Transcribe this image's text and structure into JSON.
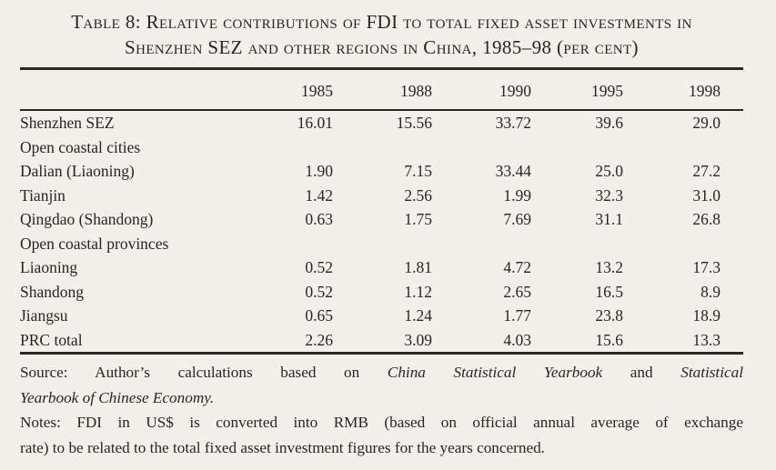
{
  "title": {
    "line1": "Table 8: Relative contributions of FDI to total fixed asset investments in",
    "line2": "Shenzhen SEZ and other regions in China, 1985–98 (per cent)"
  },
  "table": {
    "columns": [
      "1985",
      "1988",
      "1990",
      "1995",
      "1998"
    ],
    "rows": [
      {
        "label": "Shenzhen SEZ",
        "values": [
          "16.01",
          "15.56",
          "33.72",
          "39.6",
          "29.0"
        ]
      },
      {
        "label": "Open coastal cities",
        "values": [
          "",
          "",
          "",
          "",
          ""
        ]
      },
      {
        "label": "Dalian (Liaoning)",
        "values": [
          "1.90",
          "7.15",
          "33.44",
          "25.0",
          "27.2"
        ]
      },
      {
        "label": "Tianjin",
        "values": [
          "1.42",
          "2.56",
          "1.99",
          "32.3",
          "31.0"
        ]
      },
      {
        "label": "Qingdao (Shandong)",
        "values": [
          "0.63",
          "1.75",
          "7.69",
          "31.1",
          "26.8"
        ]
      },
      {
        "label": "Open coastal provinces",
        "values": [
          "",
          "",
          "",
          "",
          ""
        ]
      },
      {
        "label": "Liaoning",
        "values": [
          "0.52",
          "1.81",
          "4.72",
          "13.2",
          "17.3"
        ]
      },
      {
        "label": "Shandong",
        "values": [
          "0.52",
          "1.12",
          "2.65",
          "16.5",
          "8.9"
        ]
      },
      {
        "label": "Jiangsu",
        "values": [
          "0.65",
          "1.24",
          "1.77",
          "23.8",
          "18.9"
        ]
      },
      {
        "label": "PRC total",
        "values": [
          "2.26",
          "3.09",
          "4.03",
          "15.6",
          "13.3"
        ]
      }
    ]
  },
  "source": {
    "lines": [
      {
        "segments": [
          {
            "text": "Source: Author’s calculations based on ",
            "italic": false
          },
          {
            "text": "China Statistical Yearbook",
            "italic": true
          },
          {
            "text": " and ",
            "italic": false
          },
          {
            "text": "Statistical",
            "italic": true
          }
        ]
      },
      {
        "segments": [
          {
            "text": "Yearbook of Chinese Economy.",
            "italic": true
          }
        ]
      }
    ]
  },
  "notes": {
    "lines": [
      "Notes: FDI in US$ is converted into RMB (based on official annual average of exchange",
      "rate) to be related to the total fixed asset investment figures for the years concerned."
    ]
  },
  "colors": {
    "paper": "#f1f0eb",
    "ink": "#2a2520"
  },
  "chart_data": {
    "type": "table",
    "title": "Table 8: Relative contributions of FDI to total fixed asset investments in Shenzhen SEZ and other regions in China, 1985–98 (per cent)",
    "categories": [
      "1985",
      "1988",
      "1990",
      "1995",
      "1998"
    ],
    "series": [
      {
        "name": "Shenzhen SEZ",
        "group": null,
        "values": [
          16.01,
          15.56,
          33.72,
          39.6,
          29.0
        ]
      },
      {
        "name": "Dalian (Liaoning)",
        "group": "Open coastal cities",
        "values": [
          1.9,
          7.15,
          33.44,
          25.0,
          27.2
        ]
      },
      {
        "name": "Tianjin",
        "group": "Open coastal cities",
        "values": [
          1.42,
          2.56,
          1.99,
          32.3,
          31.0
        ]
      },
      {
        "name": "Qingdao (Shandong)",
        "group": "Open coastal cities",
        "values": [
          0.63,
          1.75,
          7.69,
          31.1,
          26.8
        ]
      },
      {
        "name": "Liaoning",
        "group": "Open coastal provinces",
        "values": [
          0.52,
          1.81,
          4.72,
          13.2,
          17.3
        ]
      },
      {
        "name": "Shandong",
        "group": "Open coastal provinces",
        "values": [
          0.52,
          1.12,
          2.65,
          16.5,
          8.9
        ]
      },
      {
        "name": "Jiangsu",
        "group": "Open coastal provinces",
        "values": [
          0.65,
          1.24,
          1.77,
          23.8,
          18.9
        ]
      },
      {
        "name": "PRC total",
        "group": null,
        "values": [
          2.26,
          3.09,
          4.03,
          15.6,
          13.3
        ]
      }
    ],
    "unit": "per cent"
  }
}
